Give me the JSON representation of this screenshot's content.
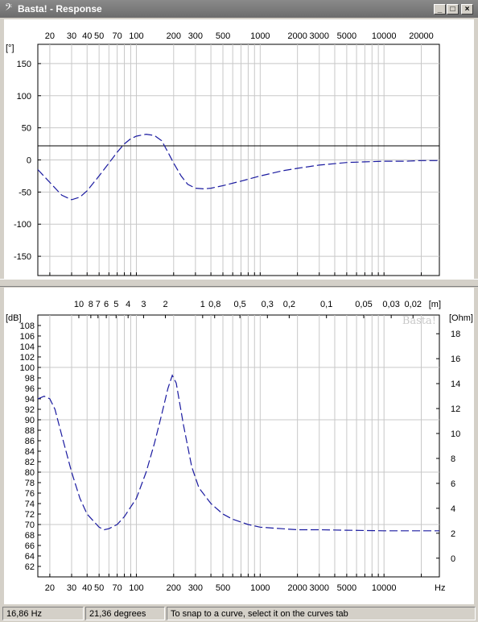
{
  "window": {
    "title": "Basta! - Response",
    "icon": "bass-clef-icon",
    "minimize_label": "_",
    "maximize_label": "□",
    "close_label": "×"
  },
  "phase_chart": {
    "type": "line",
    "ylabel": "[°]",
    "xscale": "log",
    "xlim": [
      16,
      28000
    ],
    "ylim": [
      -180,
      180
    ],
    "y_ticks": [
      150,
      100,
      50,
      0,
      -50,
      -100,
      -150
    ],
    "x_tick_labels": [
      20,
      30,
      40,
      50,
      70,
      100,
      200,
      300,
      500,
      1000,
      2000,
      3000,
      5000,
      10000,
      20000
    ],
    "cursor_line_value": 22,
    "series": [
      {
        "color": "#1a1aa0",
        "x": [
          16,
          20,
          25,
          30,
          35,
          40,
          50,
          60,
          70,
          80,
          90,
          100,
          120,
          140,
          160,
          180,
          200,
          230,
          260,
          300,
          350,
          400,
          500,
          700,
          1000,
          1500,
          2000,
          3000,
          5000,
          7000,
          10000,
          15000,
          20000,
          28000
        ],
        "y": [
          -15,
          -35,
          -55,
          -62,
          -58,
          -48,
          -25,
          -5,
          12,
          25,
          33,
          37,
          40,
          38,
          30,
          12,
          -5,
          -25,
          -38,
          -44,
          -45,
          -44,
          -40,
          -33,
          -25,
          -17,
          -13,
          -8,
          -4,
          -3,
          -2,
          -2,
          -1,
          -1
        ]
      }
    ],
    "grid": true
  },
  "spl_chart": {
    "type": "line",
    "ylabel": "[dB]",
    "y2label": "[Ohm]",
    "xlabel": "Hz",
    "xscale": "log",
    "xlim": [
      16,
      28000
    ],
    "ylim": [
      60,
      110
    ],
    "y_ticks": [
      108,
      106,
      104,
      102,
      100,
      98,
      96,
      94,
      92,
      90,
      88,
      86,
      84,
      82,
      80,
      78,
      76,
      74,
      72,
      70,
      68,
      66,
      64,
      62
    ],
    "y2_ticks": [
      18,
      16,
      14,
      12,
      10,
      8,
      6,
      4,
      2,
      0
    ],
    "x_tick_labels": [
      20,
      30,
      40,
      50,
      70,
      100,
      200,
      300,
      500,
      1000,
      2000,
      3000,
      5000,
      10000
    ],
    "top_axis_labels": [
      "10",
      "8",
      "7",
      "6",
      "5",
      "4",
      "3",
      "2",
      "1",
      "0,8",
      "0,5",
      "0,3",
      "0,2",
      "0,1",
      "0,05",
      "0,03",
      "0,02",
      "[m]"
    ],
    "watermark": "Basta!",
    "series": [
      {
        "color": "#1a1aa0",
        "x": [
          16,
          18,
          20,
          22,
          25,
          30,
          35,
          40,
          50,
          55,
          60,
          70,
          80,
          100,
          120,
          140,
          160,
          180,
          195,
          210,
          240,
          280,
          320,
          400,
          500,
          600,
          800,
          1000,
          1500,
          2000,
          3000,
          5000,
          10000,
          20000,
          28000
        ],
        "y": [
          94,
          94.5,
          94,
          92,
          87,
          80,
          75,
          72,
          69.5,
          69,
          69.2,
          70,
          71.5,
          75,
          80,
          85.5,
          91,
          96,
          98.5,
          97,
          89,
          81,
          77,
          74,
          72,
          71,
          70,
          69.5,
          69.2,
          69,
          69,
          68.9,
          68.8,
          68.8,
          68.8
        ]
      }
    ],
    "grid": true
  },
  "status": {
    "frequency": "16,86 Hz",
    "value": "21,36 degrees",
    "hint": "To snap to a curve, select it on the curves tab"
  }
}
